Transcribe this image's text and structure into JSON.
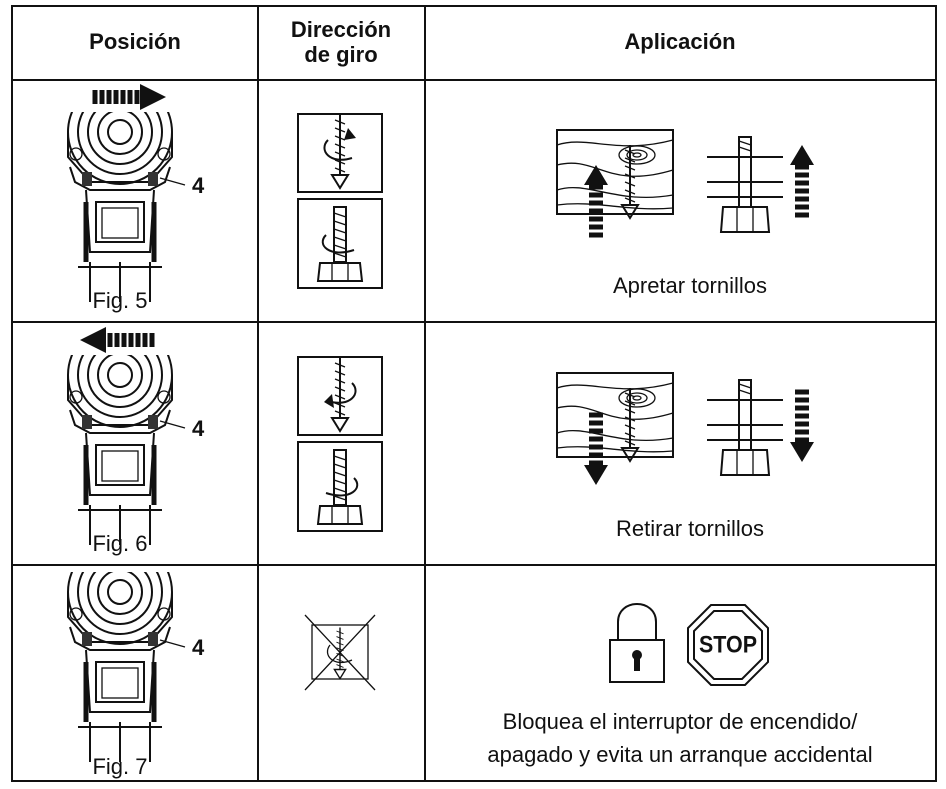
{
  "table": {
    "header": [
      "Posición",
      [
        "Dirección",
        "de giro"
      ],
      "Aplicación"
    ],
    "rows": [
      {
        "position": {
          "callout": "4",
          "figure": "Fig. 5"
        },
        "application": [
          "Apretar tornillos"
        ]
      },
      {
        "position": {
          "callout": "4",
          "figure": "Fig. 6"
        },
        "application": [
          "Retirar tornillos"
        ]
      },
      {
        "position": {
          "callout": "4",
          "figure": "Fig. 7"
        },
        "application": [
          "Bloquea el interruptor de encendido/",
          "apagado y evita un arranque accidental"
        ],
        "sign": "STOP"
      }
    ]
  }
}
